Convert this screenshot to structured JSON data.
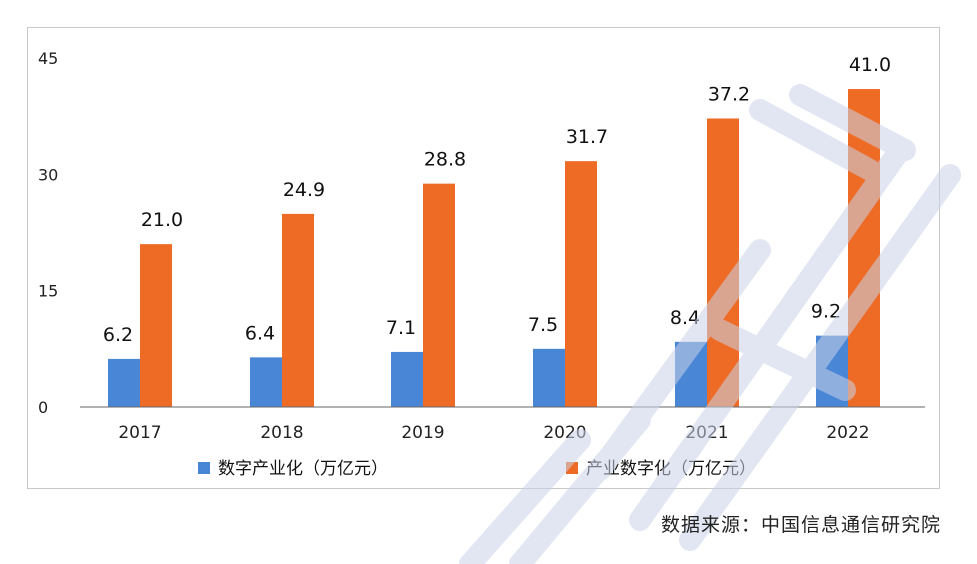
{
  "chart_data": {
    "type": "bar",
    "categories": [
      "2017",
      "2018",
      "2019",
      "2020",
      "2021",
      "2022"
    ],
    "series": [
      {
        "name": "数字产业化（万亿元）",
        "color": "#4a86d6",
        "values": [
          6.2,
          6.4,
          7.1,
          7.5,
          8.4,
          9.2
        ],
        "labels": [
          "6.2",
          "6.4",
          "7.1",
          "7.5",
          "8.4",
          "9.2"
        ]
      },
      {
        "name": "产业数字化（万亿元）",
        "color": "#ee6b26",
        "values": [
          21.0,
          24.9,
          28.8,
          31.7,
          37.2,
          41.0
        ],
        "labels": [
          "21.0",
          "24.9",
          "28.8",
          "31.7",
          "37.2",
          "41.0"
        ]
      }
    ],
    "yticks": [
      "0",
      "15",
      "30",
      "45"
    ],
    "ylim": [
      0,
      45
    ],
    "grid": false,
    "legend_position": "bottom",
    "xlabel": "",
    "ylabel": "",
    "title": ""
  },
  "source_note": "数据来源：中国信息通信研究院"
}
